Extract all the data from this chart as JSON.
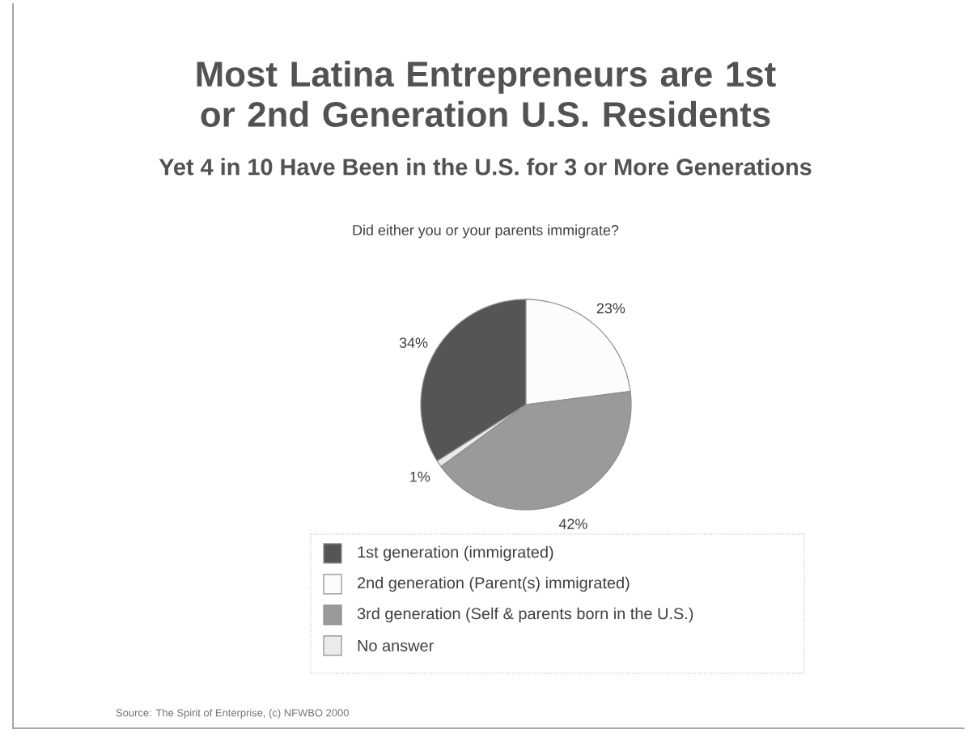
{
  "chart_data": {
    "type": "pie",
    "title": "Most Latina Entrepreneurs are 1st or 2nd Generation U.S. Residents",
    "subtitle": "Yet 4 in 10 Have Been in the U.S. for 3 or More Generations",
    "annotations": [
      "Did either you or your parents immigrate?",
      "Source: The Spirit of Enterprise, (c) NFWBO 2000"
    ],
    "categories": [
      "1st generation (immigrated)",
      "2nd generation (Parent(s) immigrated)",
      "3rd generation (Self & parents born in the U.S.)",
      "No answer"
    ],
    "values": [
      34,
      23,
      42,
      1
    ],
    "value_labels": [
      "34%",
      "23%",
      "42%",
      "1%"
    ],
    "colors": [
      "#555555",
      "#fcfcfc",
      "#9a9a9a",
      "#ebebeb"
    ],
    "legend": "bottom"
  }
}
